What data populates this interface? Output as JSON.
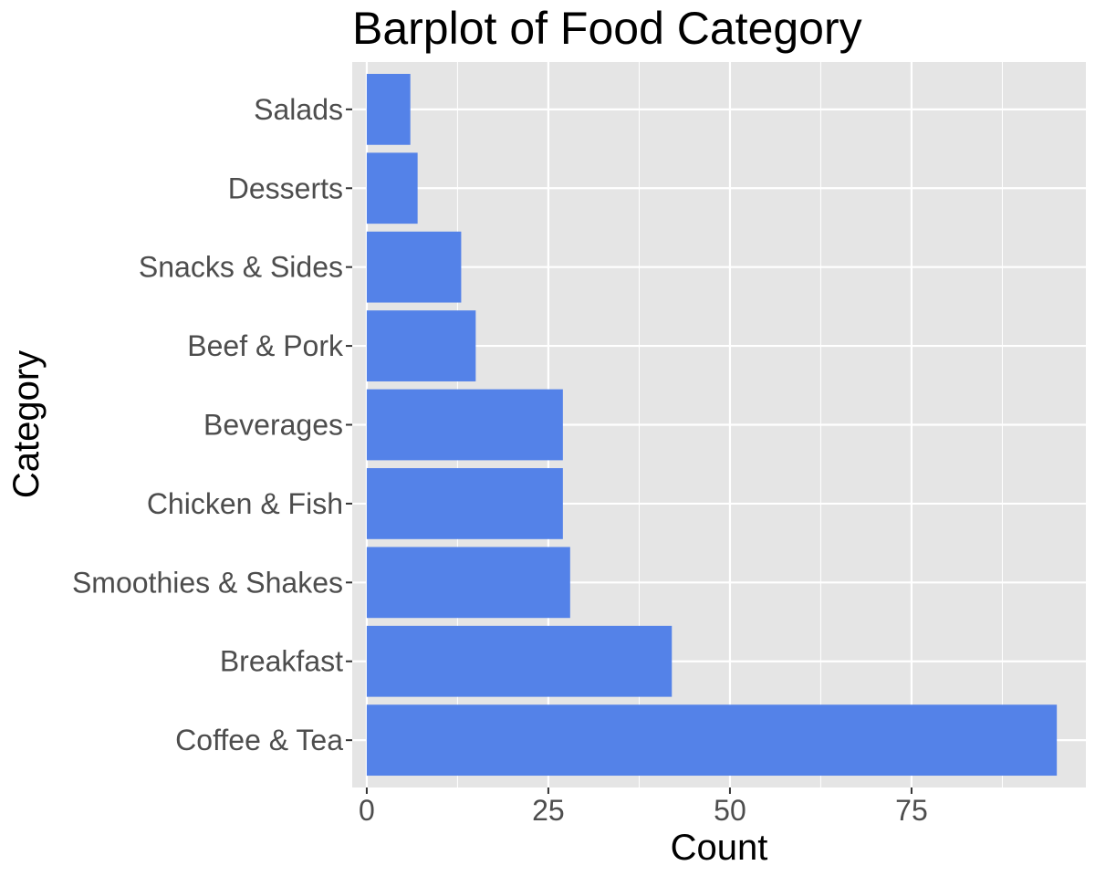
{
  "chart_data": {
    "type": "bar",
    "orientation": "horizontal",
    "title": "Barplot of Food Category",
    "xlabel": "Count",
    "ylabel": "Category",
    "categories": [
      "Coffee & Tea",
      "Breakfast",
      "Smoothies & Shakes",
      "Chicken & Fish",
      "Beverages",
      "Beef & Pork",
      "Snacks & Sides",
      "Desserts",
      "Salads"
    ],
    "values": [
      95,
      42,
      28,
      27,
      27,
      15,
      13,
      7,
      6
    ],
    "xlim": [
      -2,
      99
    ],
    "xticks": [
      0,
      25,
      50,
      75
    ],
    "grid": true,
    "legend": "none",
    "bar_color": "#5482e8",
    "panel_color": "#e5e5e5",
    "grid_color": "#ffffff"
  }
}
